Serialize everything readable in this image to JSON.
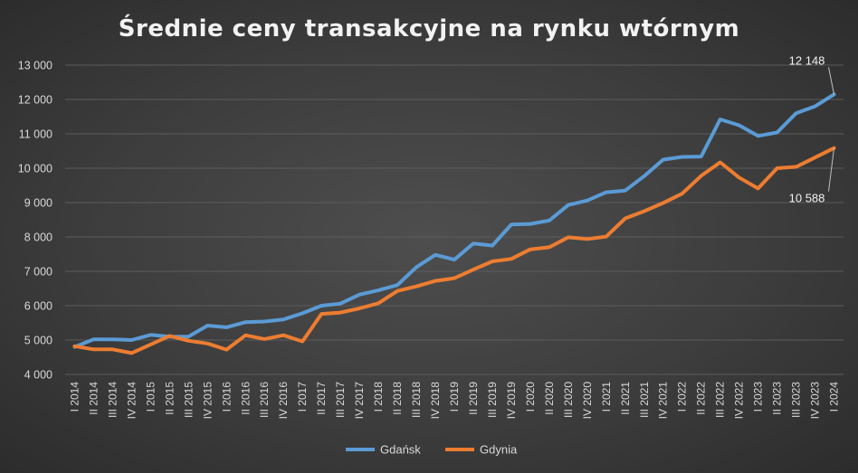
{
  "chart_data": {
    "type": "line",
    "title": "Średnie ceny transakcyjne na rynku wtórnym",
    "xlabel": "",
    "ylabel": "",
    "ylim": [
      4000,
      13000
    ],
    "yticks": [
      "4 000",
      "5 000",
      "6 000",
      "7 000",
      "8 000",
      "9 000",
      "10 000",
      "11 000",
      "12 000",
      "13 000"
    ],
    "ytick_values": [
      4000,
      5000,
      6000,
      7000,
      8000,
      9000,
      10000,
      11000,
      12000,
      13000
    ],
    "grid": true,
    "legend_position": "bottom",
    "categories": [
      "I 2014",
      "II 2014",
      "III 2014",
      "IV 2014",
      "I 2015",
      "II 2015",
      "III 2015",
      "IV 2015",
      "I 2016",
      "II 2016",
      "III 2016",
      "IV 2016",
      "I 2017",
      "II 2017",
      "III 2017",
      "IV 2017",
      "I 2018",
      "II 2018",
      "III 2018",
      "IV 2018",
      "I 2019",
      "II 2019",
      "III 2019",
      "IV 2019",
      "I 2020",
      "II 2020",
      "III 2020",
      "IV 2020",
      "I 2021",
      "II 2021",
      "III 2021",
      "IV 2021",
      "I 2022",
      "II 2022",
      "III 2022",
      "IV 2022",
      "I 2023",
      "II 2023",
      "III 2023",
      "IV 2023",
      "I 2024"
    ],
    "series": [
      {
        "name": "Gdańsk",
        "color": "#5b9bd5",
        "values": [
          4800,
          5020,
          5020,
          5000,
          5150,
          5100,
          5100,
          5420,
          5370,
          5520,
          5540,
          5600,
          5780,
          6000,
          6060,
          6320,
          6450,
          6600,
          7120,
          7480,
          7340,
          7810,
          7750,
          8360,
          8380,
          8480,
          8930,
          9060,
          9300,
          9350,
          9770,
          10250,
          10330,
          10340,
          11420,
          11250,
          10940,
          11040,
          11600,
          11800,
          12148
        ]
      },
      {
        "name": "Gdynia",
        "color": "#ed7d31",
        "values": [
          4820,
          4730,
          4730,
          4620,
          4870,
          5120,
          4980,
          4900,
          4720,
          5140,
          5030,
          5140,
          4960,
          5760,
          5800,
          5920,
          6070,
          6430,
          6560,
          6720,
          6800,
          7050,
          7290,
          7360,
          7640,
          7700,
          7990,
          7940,
          8010,
          8540,
          8750,
          8990,
          9260,
          9780,
          10170,
          9730,
          9410,
          10000,
          10040,
          10310,
          10588
        ]
      }
    ],
    "annotations": [
      {
        "text": "12 148",
        "series": "Gdańsk",
        "index": 40
      },
      {
        "text": "10 588",
        "series": "Gdynia",
        "index": 40
      }
    ]
  }
}
